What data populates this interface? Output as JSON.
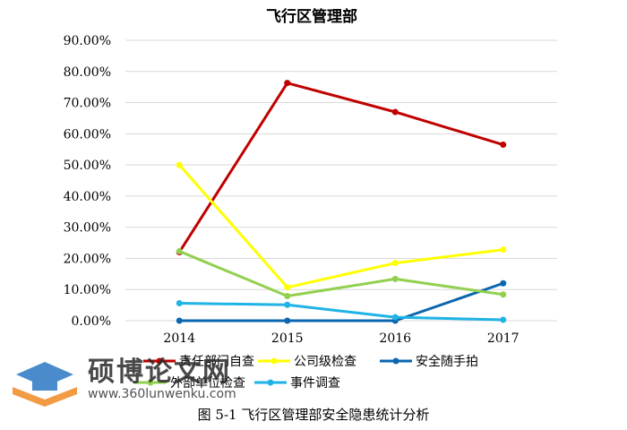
{
  "chart_data": {
    "type": "line",
    "title": "飞行区管理部",
    "categories": [
      "2014",
      "2015",
      "2016",
      "2017"
    ],
    "ylim": [
      0,
      90
    ],
    "yticks": [
      0,
      10,
      20,
      30,
      40,
      50,
      60,
      70,
      80,
      90
    ],
    "ytick_labels": [
      "0.00%",
      "10.00%",
      "20.00%",
      "30.00%",
      "40.00%",
      "50.00%",
      "60.00%",
      "70.00%",
      "80.00%",
      "90.00%"
    ],
    "grid": true,
    "legend_position": "bottom",
    "series": [
      {
        "name": "责任部门自查",
        "color": "#C00000",
        "values": [
          22.0,
          76.3,
          67.0,
          56.5
        ]
      },
      {
        "name": "公司级检查",
        "color": "#FFFF00",
        "values": [
          50.0,
          10.7,
          18.5,
          22.8
        ]
      },
      {
        "name": "安全随手拍",
        "color": "#0B66B0",
        "values": [
          0.0,
          0.0,
          0.0,
          12.0
        ]
      },
      {
        "name": "外部单位检查",
        "color": "#92D050",
        "values": [
          22.3,
          7.9,
          13.4,
          8.4
        ]
      },
      {
        "name": "事件调查",
        "color": "#1FB3E6",
        "values": [
          5.6,
          5.1,
          1.1,
          0.3
        ]
      }
    ]
  },
  "caption": "图 5-1  飞行区管理部安全隐患统计分析",
  "watermark": {
    "text": "硕博论文网",
    "url": "www.360lunwenku.com"
  }
}
